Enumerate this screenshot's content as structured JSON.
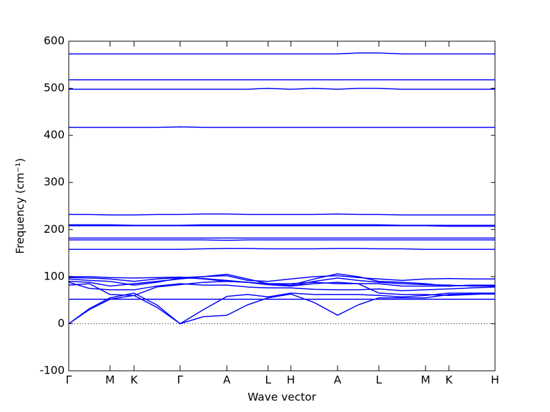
{
  "chart_data": {
    "type": "line",
    "xlabel": "Wave vector",
    "ylabel": "Frequency (cm⁻¹)",
    "color": "#0000ff",
    "x": [
      0,
      30,
      60,
      95,
      128,
      162,
      196,
      230,
      260,
      290,
      323,
      357,
      391,
      421,
      451,
      485,
      519,
      553,
      586,
      620
    ],
    "xlim": [
      0,
      620
    ],
    "xticks": [
      {
        "value": 0,
        "label": "Γ"
      },
      {
        "value": 60,
        "label": "M"
      },
      {
        "value": 95,
        "label": "K"
      },
      {
        "value": 162,
        "label": "Γ"
      },
      {
        "value": 230,
        "label": "A"
      },
      {
        "value": 290,
        "label": "L"
      },
      {
        "value": 323,
        "label": "H"
      },
      {
        "value": 391,
        "label": "A"
      },
      {
        "value": 451,
        "label": "L"
      },
      {
        "value": 519,
        "label": "M"
      },
      {
        "value": 553,
        "label": "K"
      },
      {
        "value": 620,
        "label": "H"
      }
    ],
    "ylim": [
      -100,
      600
    ],
    "yticks": [
      -100,
      0,
      100,
      200,
      300,
      400,
      500,
      600
    ],
    "reference_line": 0,
    "series": [
      {
        "values": [
          573,
          573,
          573,
          573,
          573,
          573,
          573,
          573,
          573,
          573,
          573,
          573,
          573,
          575,
          575,
          573,
          573,
          573,
          573,
          573
        ]
      },
      {
        "values": [
          518,
          518,
          518,
          518,
          518,
          518,
          518,
          518,
          518,
          518,
          518,
          518,
          518,
          518,
          518,
          518,
          518,
          518,
          518,
          518
        ]
      },
      {
        "values": [
          498,
          498,
          498,
          498,
          498,
          498,
          498,
          498,
          498,
          500,
          498,
          500,
          498,
          500,
          500,
          498,
          498,
          498,
          498,
          498
        ]
      },
      {
        "values": [
          417,
          417,
          417,
          417,
          417,
          418,
          417,
          417,
          417,
          417,
          417,
          417,
          417,
          417,
          417,
          417,
          417,
          417,
          417,
          417
        ]
      },
      {
        "values": [
          232,
          232,
          231,
          231,
          232,
          232,
          233,
          233,
          232,
          232,
          232,
          232,
          233,
          232,
          232,
          231,
          231,
          231,
          231,
          231
        ]
      },
      {
        "values": [
          210,
          210,
          210,
          209,
          209,
          209,
          210,
          210,
          210,
          210,
          210,
          210,
          210,
          210,
          210,
          209,
          209,
          209,
          209,
          209
        ]
      },
      {
        "values": [
          208,
          208,
          208,
          208,
          208,
          208,
          208,
          208,
          208,
          208,
          208,
          208,
          208,
          208,
          208,
          208,
          208,
          207,
          207,
          207
        ]
      },
      {
        "values": [
          182,
          182,
          182,
          182,
          182,
          182,
          182,
          182,
          182,
          182,
          182,
          182,
          182,
          182,
          182,
          182,
          182,
          182,
          182,
          182
        ]
      },
      {
        "values": [
          178,
          178,
          178,
          178,
          178,
          178,
          178,
          177,
          178,
          178,
          178,
          178,
          178,
          178,
          178,
          178,
          178,
          178,
          178,
          178
        ]
      },
      {
        "values": [
          158,
          158,
          158,
          158,
          158,
          158,
          159,
          160,
          160,
          159,
          159,
          159,
          160,
          160,
          159,
          159,
          158,
          158,
          158,
          158
        ]
      },
      {
        "values": [
          52,
          52,
          52,
          52,
          52,
          52,
          52,
          52,
          52,
          52,
          52,
          52,
          52,
          52,
          52,
          52,
          52,
          52,
          52,
          52
        ]
      },
      {
        "values": [
          0,
          30,
          52,
          60,
          35,
          0,
          15,
          18,
          40,
          55,
          63,
          45,
          18,
          40,
          55,
          55,
          55,
          62,
          63,
          63
        ]
      },
      {
        "values": [
          0,
          32,
          55,
          65,
          40,
          0,
          30,
          58,
          62,
          57,
          65,
          62,
          62,
          62,
          60,
          57,
          60,
          65,
          65,
          65
        ]
      },
      {
        "values": [
          82,
          85,
          62,
          60,
          78,
          83,
          88,
          90,
          88,
          83,
          80,
          85,
          88,
          85,
          65,
          62,
          62,
          60,
          62,
          64
        ]
      },
      {
        "values": [
          90,
          88,
          80,
          85,
          90,
          95,
          100,
          105,
          95,
          85,
          82,
          95,
          106,
          100,
          90,
          88,
          85,
          80,
          82,
          82
        ]
      },
      {
        "values": [
          95,
          92,
          90,
          82,
          88,
          97,
          96,
          92,
          88,
          83,
          80,
          90,
          97,
          92,
          88,
          85,
          83,
          82,
          80,
          80
        ]
      },
      {
        "values": [
          98,
          97,
          95,
          90,
          95,
          98,
          100,
          102,
          92,
          90,
          95,
          100,
          102,
          98,
          95,
          92,
          95,
          96,
          95,
          95
        ]
      },
      {
        "values": [
          100,
          100,
          98,
          97,
          98,
          99,
          95,
          90,
          88,
          85,
          85,
          88,
          85,
          85,
          85,
          80,
          80,
          80,
          82,
          80
        ]
      },
      {
        "values": [
          88,
          75,
          72,
          72,
          80,
          85,
          82,
          82,
          78,
          76,
          76,
          73,
          72,
          72,
          74,
          70,
          72,
          74,
          76,
          78
        ]
      }
    ]
  }
}
